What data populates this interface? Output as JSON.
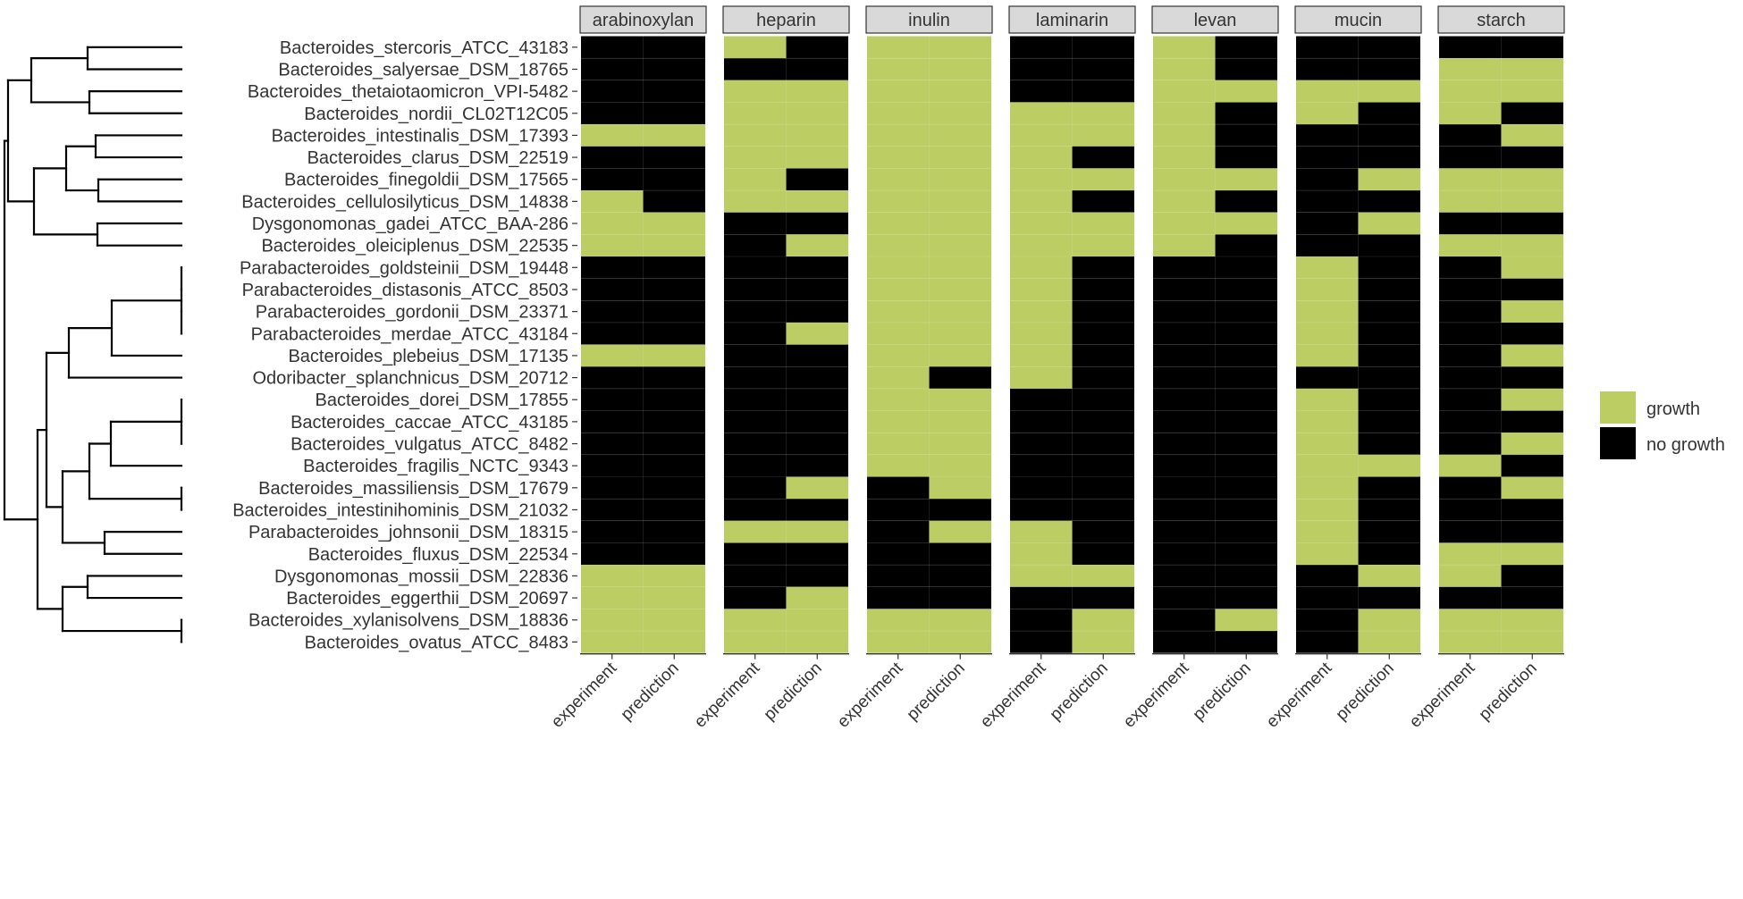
{
  "chart_data": {
    "type": "heatmap",
    "title": "",
    "xlabel": "",
    "ylabel": "",
    "legend_position": "right",
    "legend": [
      {
        "key": "growth",
        "label": "growth",
        "color": "#bccd63"
      },
      {
        "key": "no growth",
        "label": "no growth",
        "color": "#000000"
      }
    ],
    "columns": [
      "experiment",
      "prediction"
    ],
    "panels": [
      "arabinoxylan",
      "heparin",
      "inulin",
      "laminarin",
      "levan",
      "mucin",
      "starch"
    ],
    "rows": [
      "Bacteroides_stercoris_ATCC_43183",
      "Bacteroides_salyersae_DSM_18765",
      "Bacteroides_thetaiotaomicron_VPI-5482",
      "Bacteroides_nordii_CL02T12C05",
      "Bacteroides_intestinalis_DSM_17393",
      "Bacteroides_clarus_DSM_22519",
      "Bacteroides_finegoldii_DSM_17565",
      "Bacteroides_cellulosilyticus_DSM_14838",
      "Dysgonomonas_gadei_ATCC_BAA-286",
      "Bacteroides_oleiciplenus_DSM_22535",
      "Parabacteroides_goldsteinii_DSM_19448",
      "Parabacteroides_distasonis_ATCC_8503",
      "Parabacteroides_gordonii_DSM_23371",
      "Parabacteroides_merdae_ATCC_43184",
      "Bacteroides_plebeius_DSM_17135",
      "Odoribacter_splanchnicus_DSM_20712",
      "Bacteroides_dorei_DSM_17855",
      "Bacteroides_caccae_ATCC_43185",
      "Bacteroides_vulgatus_ATCC_8482",
      "Bacteroides_fragilis_NCTC_9343",
      "Bacteroides_massiliensis_DSM_17679",
      "Bacteroides_intestinihominis_DSM_21032",
      "Parabacteroides_johnsonii_DSM_18315",
      "Bacteroides_fluxus_DSM_22534",
      "Dysgonomonas_mossii_DSM_22836",
      "Bacteroides_eggerthii_DSM_20697",
      "Bacteroides_xylanisolvens_DSM_18836",
      "Bacteroides_ovatus_ATCC_8483"
    ],
    "values": {
      "arabinoxylan": {
        "experiment": [
          0,
          0,
          0,
          0,
          1,
          0,
          0,
          1,
          1,
          1,
          0,
          0,
          0,
          0,
          1,
          0,
          0,
          0,
          0,
          0,
          0,
          0,
          0,
          0,
          1,
          1,
          1,
          1
        ],
        "prediction": [
          0,
          0,
          0,
          0,
          1,
          0,
          0,
          0,
          1,
          1,
          0,
          0,
          0,
          0,
          1,
          0,
          0,
          0,
          0,
          0,
          0,
          0,
          0,
          0,
          1,
          1,
          1,
          1
        ]
      },
      "heparin": {
        "experiment": [
          1,
          0,
          1,
          1,
          1,
          1,
          1,
          1,
          0,
          0,
          0,
          0,
          0,
          0,
          0,
          0,
          0,
          0,
          0,
          0,
          0,
          0,
          1,
          0,
          0,
          0,
          1,
          1
        ],
        "prediction": [
          0,
          0,
          1,
          1,
          1,
          1,
          0,
          1,
          0,
          1,
          0,
          0,
          0,
          1,
          0,
          0,
          0,
          0,
          0,
          0,
          1,
          0,
          1,
          0,
          0,
          1,
          1,
          1
        ]
      },
      "inulin": {
        "experiment": [
          1,
          1,
          1,
          1,
          1,
          1,
          1,
          1,
          1,
          1,
          1,
          1,
          1,
          1,
          1,
          1,
          1,
          1,
          1,
          1,
          0,
          0,
          0,
          0,
          0,
          0,
          1,
          1
        ],
        "prediction": [
          1,
          1,
          1,
          1,
          1,
          1,
          1,
          1,
          1,
          1,
          1,
          1,
          1,
          1,
          1,
          0,
          1,
          1,
          1,
          1,
          1,
          0,
          1,
          0,
          0,
          0,
          1,
          1
        ]
      },
      "laminarin": {
        "experiment": [
          0,
          0,
          0,
          1,
          1,
          1,
          1,
          1,
          1,
          1,
          1,
          1,
          1,
          1,
          1,
          1,
          0,
          0,
          0,
          0,
          0,
          0,
          1,
          1,
          1,
          0,
          0,
          0
        ],
        "prediction": [
          0,
          0,
          0,
          1,
          1,
          0,
          1,
          0,
          1,
          1,
          0,
          0,
          0,
          0,
          0,
          0,
          0,
          0,
          0,
          0,
          0,
          0,
          0,
          0,
          1,
          0,
          1,
          1
        ]
      },
      "levan": {
        "experiment": [
          1,
          1,
          1,
          1,
          1,
          1,
          1,
          1,
          1,
          1,
          0,
          0,
          0,
          0,
          0,
          0,
          0,
          0,
          0,
          0,
          0,
          0,
          0,
          0,
          0,
          0,
          0,
          0
        ],
        "prediction": [
          0,
          0,
          1,
          0,
          0,
          0,
          1,
          0,
          1,
          0,
          0,
          0,
          0,
          0,
          0,
          0,
          0,
          0,
          0,
          0,
          0,
          0,
          0,
          0,
          0,
          0,
          1,
          0
        ]
      },
      "mucin": {
        "experiment": [
          0,
          0,
          1,
          1,
          0,
          0,
          0,
          0,
          0,
          0,
          1,
          1,
          1,
          1,
          1,
          0,
          1,
          1,
          1,
          1,
          1,
          1,
          1,
          1,
          0,
          0,
          0,
          0
        ],
        "prediction": [
          0,
          0,
          1,
          0,
          0,
          0,
          1,
          0,
          1,
          0,
          0,
          0,
          0,
          0,
          0,
          0,
          0,
          0,
          0,
          1,
          0,
          0,
          0,
          0,
          1,
          0,
          1,
          1
        ]
      },
      "starch": {
        "experiment": [
          0,
          1,
          1,
          1,
          0,
          0,
          1,
          1,
          0,
          1,
          0,
          0,
          0,
          0,
          0,
          0,
          0,
          0,
          0,
          1,
          0,
          0,
          0,
          1,
          1,
          0,
          1,
          1
        ],
        "prediction": [
          0,
          1,
          1,
          0,
          1,
          0,
          1,
          1,
          0,
          1,
          1,
          0,
          1,
          0,
          1,
          0,
          1,
          0,
          1,
          0,
          1,
          0,
          0,
          1,
          0,
          0,
          1,
          1
        ]
      }
    }
  }
}
